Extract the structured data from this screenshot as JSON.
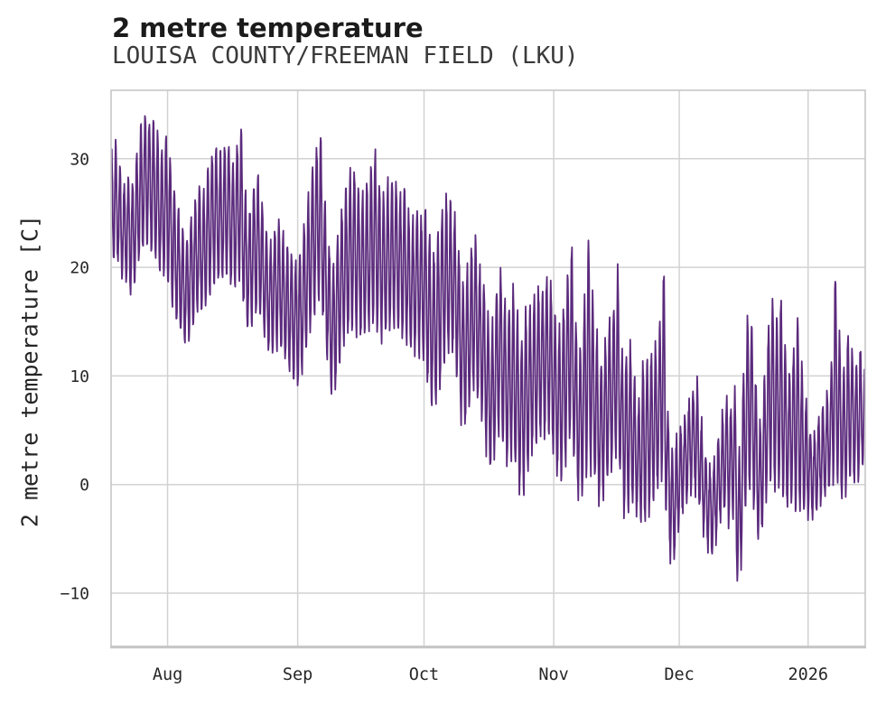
{
  "chart_data": {
    "type": "line",
    "title": "2 metre temperature",
    "subtitle": "LOUISA COUNTY/FREEMAN FIELD (LKU)",
    "ylabel": "2 metre temperature [C]",
    "xlabel": "",
    "line_color": "#5b2a7c",
    "grid_color": "#d2d2d2",
    "spine_color": "#c6c6c6",
    "grid_on": true,
    "legend": "none",
    "ylim": [
      -14.9,
      36.3
    ],
    "x_range_days": [
      0,
      180.25
    ],
    "y_ticks": [
      {
        "value": 30,
        "label": "30"
      },
      {
        "value": 20,
        "label": "20"
      },
      {
        "value": 10,
        "label": "10"
      },
      {
        "value": 0,
        "label": "0"
      },
      {
        "value": -10,
        "label": "−10"
      }
    ],
    "x_ticks": [
      {
        "day": 13.5,
        "label": "Aug"
      },
      {
        "day": 44.6,
        "label": "Sep"
      },
      {
        "day": 74.8,
        "label": "Oct"
      },
      {
        "day": 105.8,
        "label": "Nov"
      },
      {
        "day": 135.8,
        "label": "Dec"
      },
      {
        "day": 166.6,
        "label": "2026"
      }
    ],
    "series": [
      {
        "name": "2 metre temperature",
        "description": "hourly temperature curve; stored as daily min/max envelope, day 0 = left edge (mid-July), day 166.6 = Jan 1 2026",
        "daily_min": [
          20,
          21,
          20,
          18.5,
          19,
          17,
          19.5,
          21,
          22,
          22.5,
          21,
          20.5,
          19,
          19.5,
          18,
          16,
          14.5,
          13.5,
          12.8,
          14,
          15,
          16.5,
          15.5,
          17,
          18,
          19,
          18.5,
          19,
          19.5,
          18,
          18.5,
          19,
          15,
          14,
          15.5,
          16,
          15,
          13,
          12,
          12.5,
          13,
          12,
          11,
          10.5,
          9.3,
          9.1,
          11,
          13,
          15,
          16.5,
          17.5,
          14,
          10,
          7.7,
          10,
          12,
          13.5,
          14,
          14.5,
          14,
          13.5,
          14,
          14.5,
          15,
          14,
          13.5,
          14,
          14.5,
          15,
          14,
          13.5,
          13,
          12,
          12.5,
          12,
          11.5,
          8,
          6.8,
          8,
          10,
          12,
          12.5,
          12,
          9,
          4.8,
          6,
          8,
          9.5,
          7,
          6,
          2,
          0.8,
          4,
          5.5,
          3,
          1.4,
          3,
          1,
          -1.1,
          0,
          2,
          3.5,
          4,
          5,
          4.5,
          5,
          2,
          0.3,
          1,
          3,
          5,
          1,
          -2.2,
          0,
          2,
          1,
          0,
          -2.5,
          0,
          1,
          2,
          3,
          0,
          -3.9,
          -1,
          -2,
          -3,
          -3.6,
          -3,
          -2,
          -1,
          0,
          1,
          -4,
          -8,
          -6,
          -3,
          -2,
          -1,
          0,
          -1,
          -3,
          -5,
          -6,
          -6.7,
          -4,
          -3,
          -2,
          -4,
          -2,
          -12.5,
          -4,
          -1,
          0,
          -3,
          -6,
          -3,
          0,
          1,
          -1,
          0,
          -2,
          -2,
          -1,
          -3,
          -2,
          -3,
          -2.5,
          -3,
          -2,
          -1.5,
          -1,
          0,
          1,
          0,
          -2.2,
          0,
          1,
          0,
          1,
          2
        ],
        "daily_max": [
          31,
          31.5,
          29.5,
          27.5,
          28.5,
          27.5,
          30,
          32.8,
          34.2,
          33.5,
          33.7,
          32.5,
          30.5,
          32.3,
          30.5,
          27.5,
          25.5,
          23.5,
          22.5,
          24.5,
          26,
          27.5,
          26.5,
          29,
          30.5,
          31.2,
          30.5,
          31,
          31.5,
          29.5,
          31,
          33.3,
          27,
          25,
          27.5,
          28.8,
          26,
          23.5,
          22,
          23.5,
          24.5,
          23,
          22,
          21.5,
          20.5,
          21,
          23.5,
          26,
          29,
          31,
          32.6,
          26.5,
          22,
          20,
          22.5,
          25,
          27,
          28.5,
          29.2,
          27.5,
          26.5,
          27.5,
          29,
          31,
          28,
          26.5,
          27.5,
          28,
          28,
          26.5,
          27.8,
          25,
          24,
          25.5,
          24.5,
          25.5,
          23,
          21,
          23,
          25,
          26.5,
          26,
          25,
          22,
          18.5,
          19.5,
          21.5,
          23,
          20,
          19,
          15.5,
          14,
          17.5,
          20,
          17,
          16,
          18,
          16,
          13,
          16,
          16,
          17,
          18,
          17.5,
          19.2,
          18.5,
          15.5,
          14,
          16,
          18.8,
          22.6,
          15,
          12,
          16,
          23.3,
          17.5,
          14,
          11,
          13,
          15,
          15.5,
          20.3,
          12,
          12,
          13,
          10,
          7,
          11,
          11.5,
          12,
          12.5,
          13.5,
          21.3,
          7,
          3,
          4,
          5,
          6,
          7.5,
          8.5,
          9.5,
          6,
          3,
          1.5,
          2,
          4,
          6,
          8,
          7,
          9,
          2,
          9,
          15.3,
          15.5,
          10,
          5,
          9,
          14,
          17.3,
          15,
          17.4,
          13,
          10,
          12,
          15.8,
          11,
          8,
          5,
          4.5,
          6,
          7,
          8,
          9.5,
          20,
          14,
          10,
          13.8,
          12.5,
          11,
          12.8,
          10
        ]
      }
    ]
  }
}
